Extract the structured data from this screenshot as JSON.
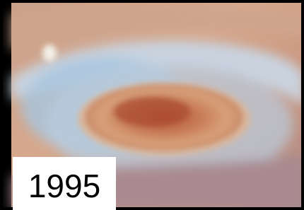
{
  "label": "1995"
}
